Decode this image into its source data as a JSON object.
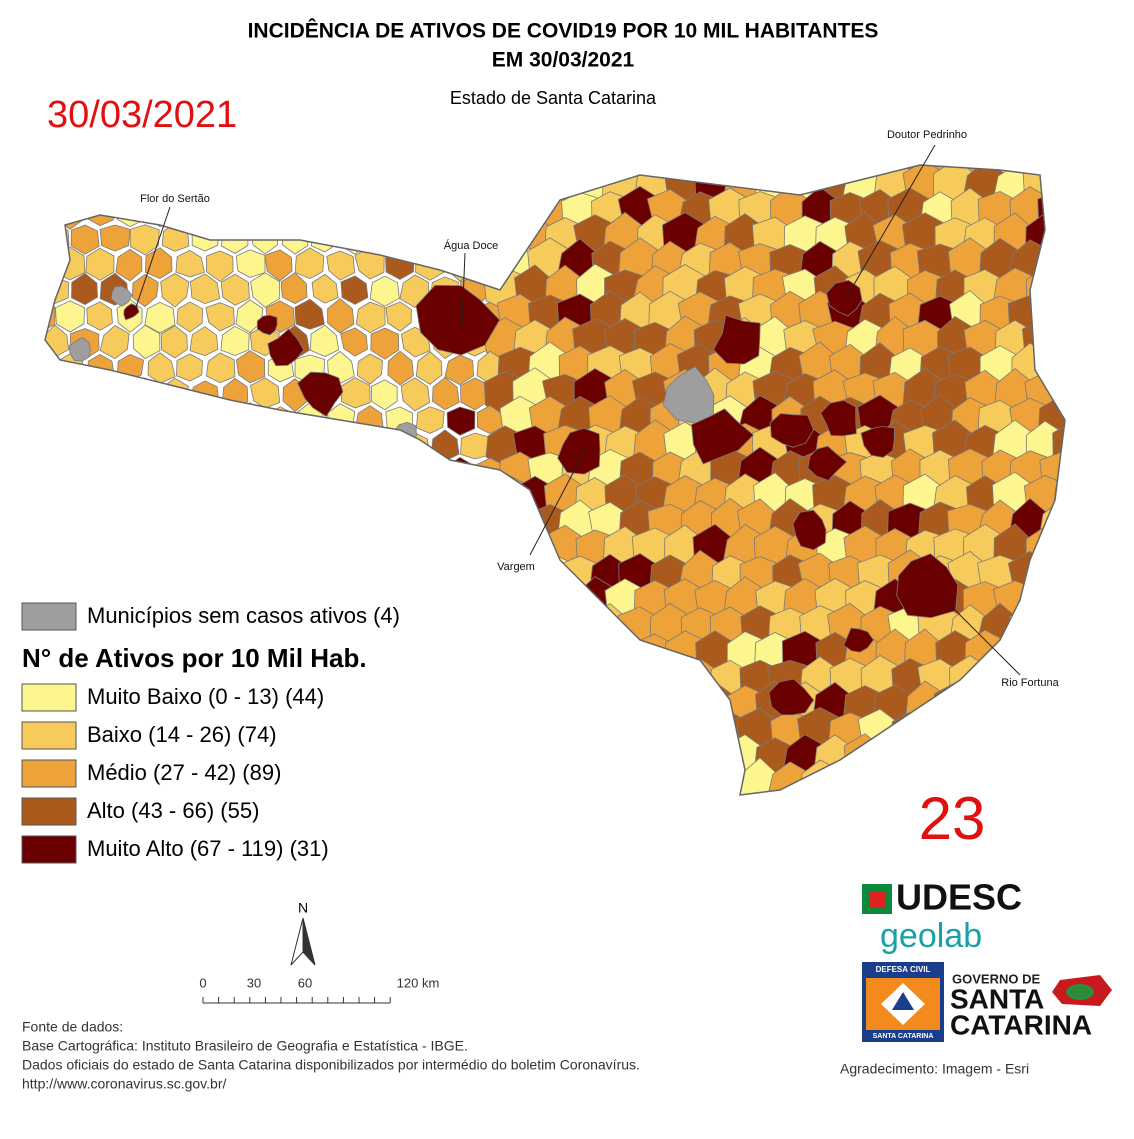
{
  "header": {
    "title_line1": "INCIDÊNCIA DE ATIVOS DE COVID19 POR 10 MIL HABITANTES",
    "title_line2": "EM 30/03/2021",
    "subtitle": "Estado de Santa Catarina",
    "date": "30/03/2021"
  },
  "map": {
    "labels": [
      "Flor do Sertão",
      "Água Doce",
      "Doutor Pedrinho",
      "Vargem",
      "Rio Fortuna"
    ]
  },
  "legend": {
    "no_cases": {
      "label": "Municípios sem casos ativos (4)",
      "color": "#9e9e9e"
    },
    "title": "N° de Ativos por 10 Mil Hab.",
    "classes": [
      {
        "label": "Muito Baixo (0 - 13) (44)",
        "color": "#fdf58d"
      },
      {
        "label": "Baixo (14 - 26) (74)",
        "color": "#f7cb5b"
      },
      {
        "label": "Médio (27 - 42) (89)",
        "color": "#eda23a"
      },
      {
        "label": "Alto (43 - 66) (55)",
        "color": "#ab5a1e"
      },
      {
        "label": "Muito Alto  (67 - 119) (31)",
        "color": "#6b0000"
      }
    ]
  },
  "figure_number": "23",
  "north_arrow": "N",
  "scale_bar": {
    "ticks": [
      "0",
      "30",
      "60",
      "120 km"
    ]
  },
  "sources": [
    "Fonte de dados:",
    "Base Cartográfica: Instituto Brasileiro de Geografia e Estatística - IBGE.",
    "Dados oficiais do estado de Santa Catarina disponibilizados por intermédio do boletim Coronavírus.",
    "http://www.coronavirus.sc.gov.br/"
  ],
  "acknowledgment": "Agradecimento: Imagem - Esri",
  "logos": {
    "udesc": "UDESC",
    "geolab": "geolab",
    "defesa_civil_top": "DEFESA CIVIL",
    "defesa_civil_bottom": "SANTA CATARINA",
    "government": [
      "GOVERNO DE",
      "SANTA",
      "CATARINA"
    ]
  }
}
